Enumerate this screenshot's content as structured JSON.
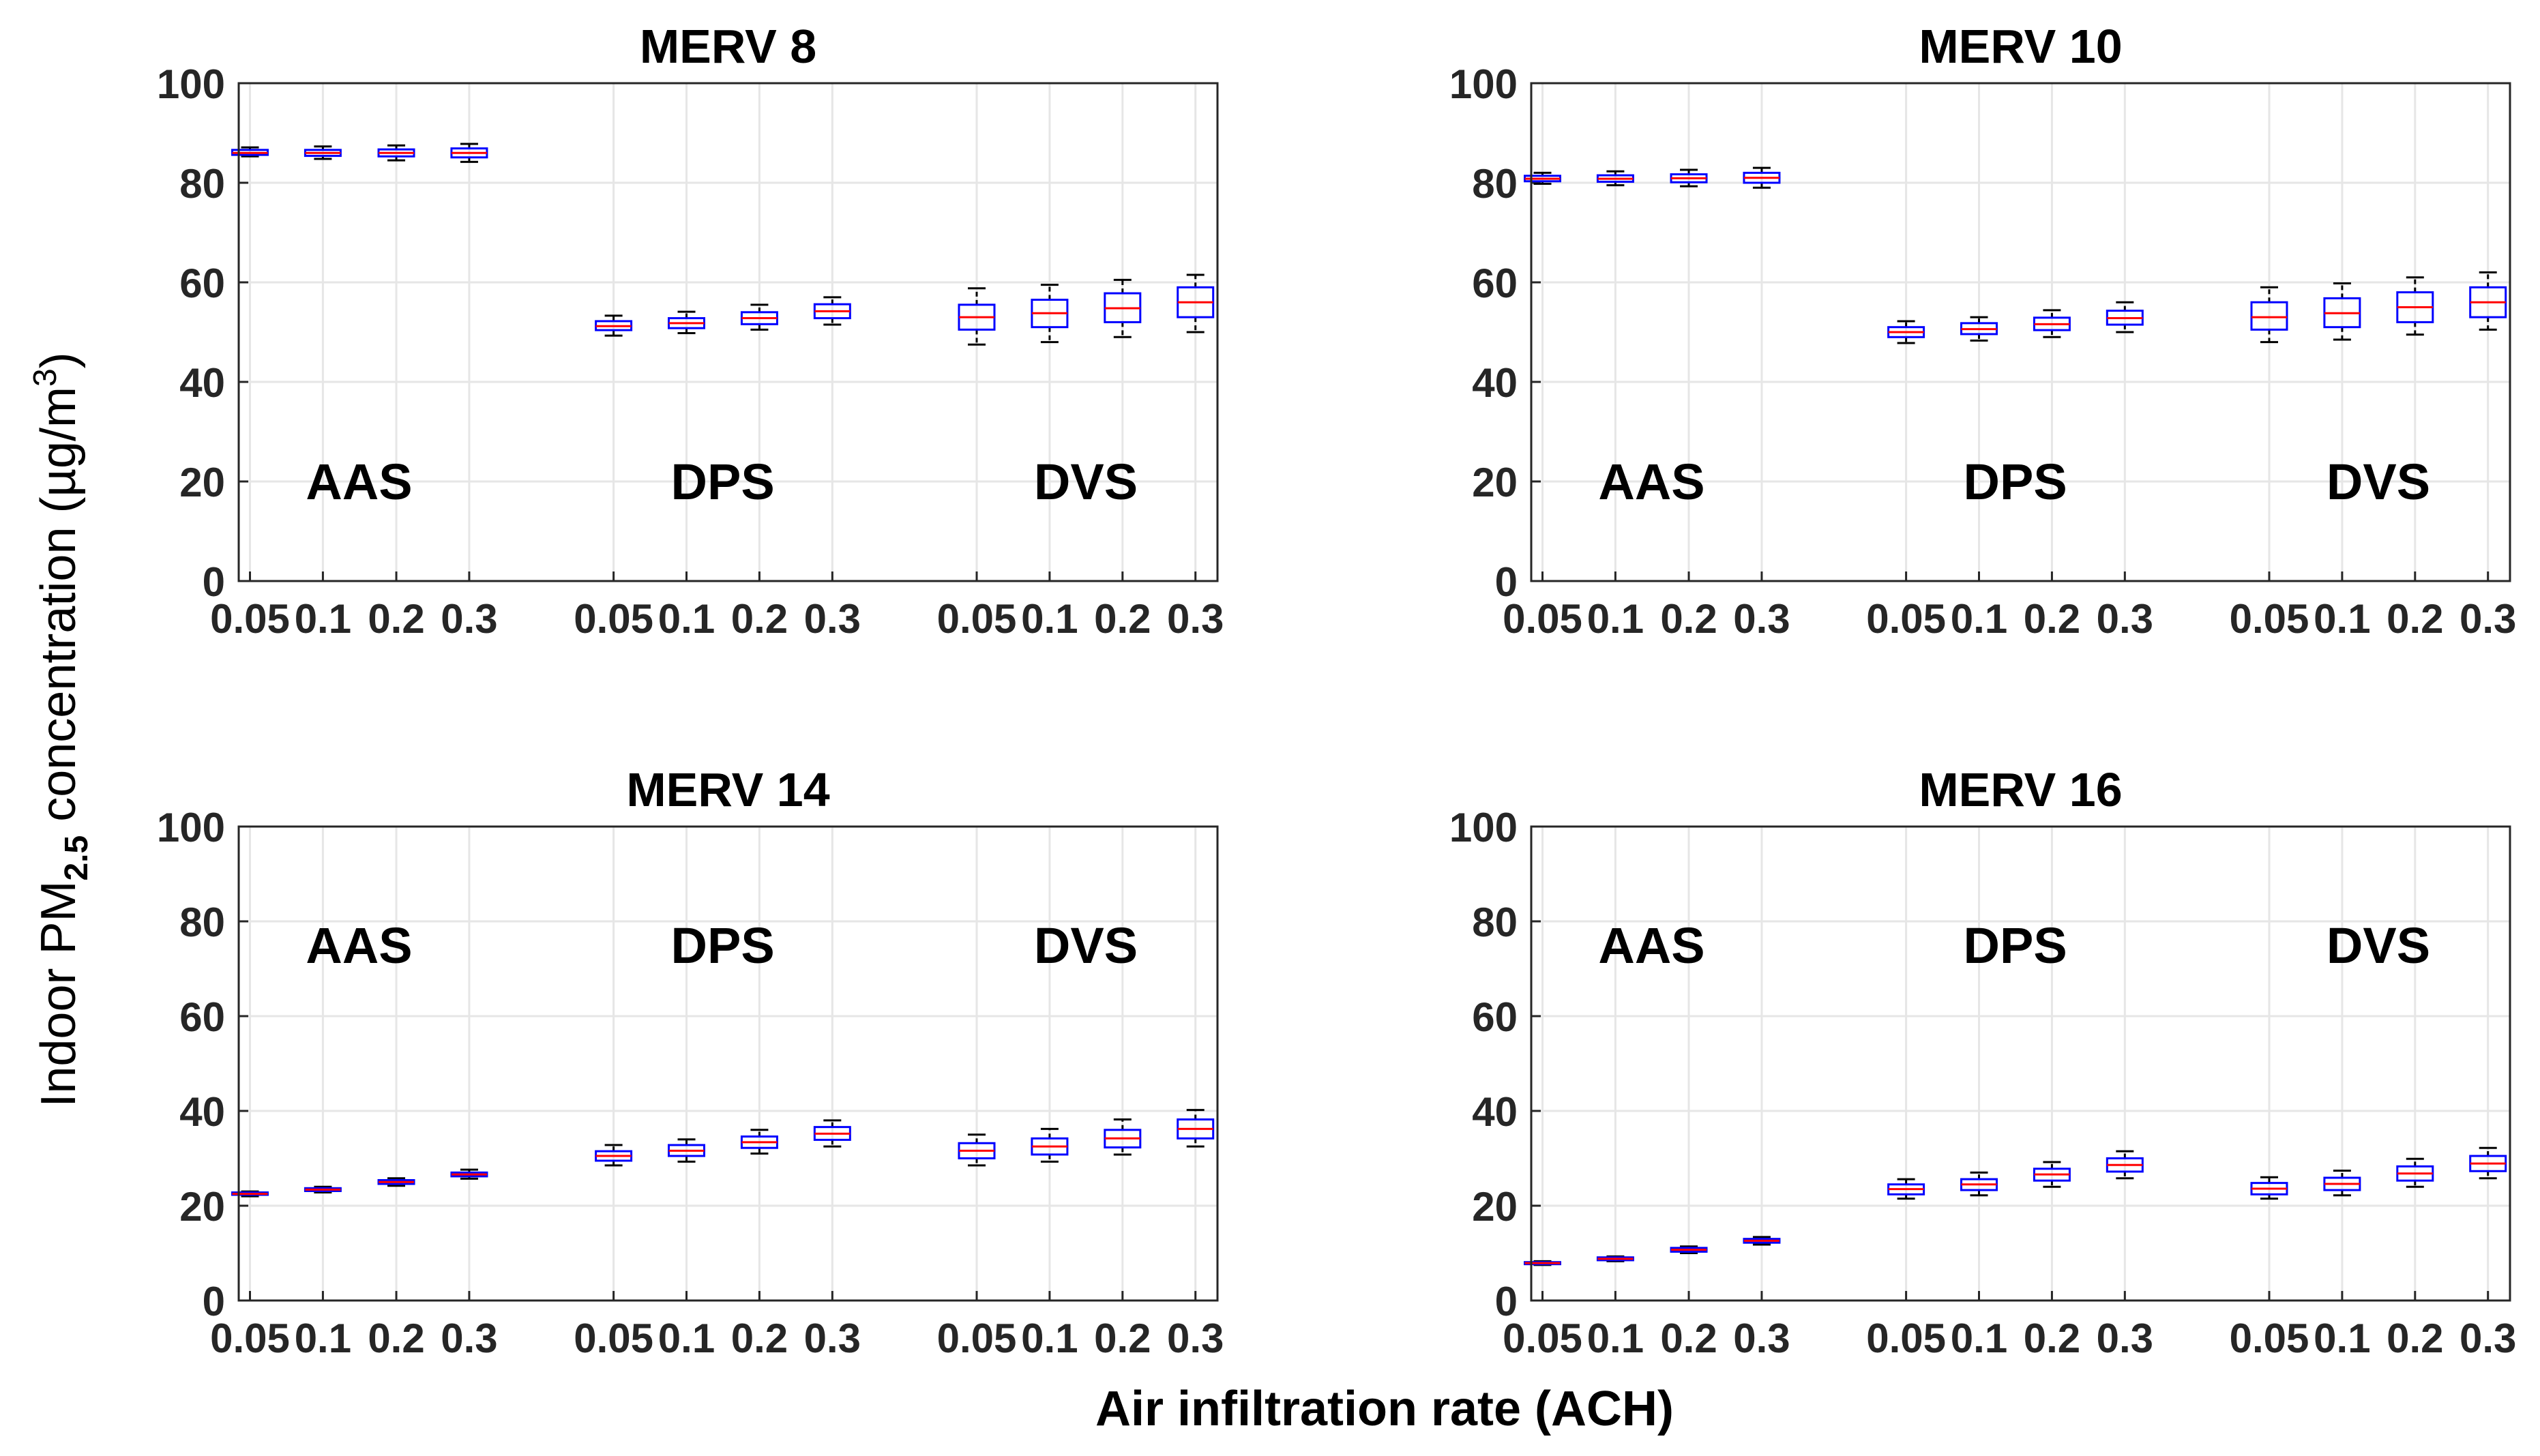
{
  "figure": {
    "ylabel_main": "Indoor PM",
    "ylabel_sub": "2.5",
    "ylabel_rest": " concentration (µg/m",
    "ylabel_sup": "3",
    "ylabel_end": ")",
    "xlabel": "Air infiltration rate (ACH)"
  },
  "chart_data": [
    {
      "type": "box",
      "title": "MERV 8",
      "ylim": [
        0,
        100
      ],
      "yticks": [
        "0",
        "20",
        "40",
        "60",
        "80",
        "100"
      ],
      "grid": true,
      "groups": [
        "AAS",
        "DPS",
        "DVS"
      ],
      "group_label_level": 20,
      "x_tick_labels": [
        "0.05",
        "0.1",
        "0.2",
        "0.3",
        "0.05",
        "0.1",
        "0.2",
        "0.3",
        "0.05",
        "0.1",
        "0.2",
        "0.3"
      ],
      "boxes": [
        {
          "group": "AAS",
          "x": "0.05",
          "whisker_low": 85.3,
          "q1": 85.6,
          "median": 86.0,
          "q3": 86.6,
          "whisker_high": 87.1
        },
        {
          "group": "AAS",
          "x": "0.1",
          "whisker_low": 84.8,
          "q1": 85.4,
          "median": 86.0,
          "q3": 86.6,
          "whisker_high": 87.3
        },
        {
          "group": "AAS",
          "x": "0.2",
          "whisker_low": 84.5,
          "q1": 85.3,
          "median": 86.0,
          "q3": 86.7,
          "whisker_high": 87.5
        },
        {
          "group": "AAS",
          "x": "0.3",
          "whisker_low": 84.2,
          "q1": 85.1,
          "median": 86.0,
          "q3": 86.9,
          "whisker_high": 87.8
        },
        {
          "group": "DPS",
          "x": "0.05",
          "whisker_low": 49.3,
          "q1": 50.4,
          "median": 51.2,
          "q3": 52.2,
          "whisker_high": 53.3
        },
        {
          "group": "DPS",
          "x": "0.1",
          "whisker_low": 49.8,
          "q1": 50.8,
          "median": 51.8,
          "q3": 52.8,
          "whisker_high": 54.1
        },
        {
          "group": "DPS",
          "x": "0.2",
          "whisker_low": 50.5,
          "q1": 51.6,
          "median": 52.8,
          "q3": 54.0,
          "whisker_high": 55.5
        },
        {
          "group": "DPS",
          "x": "0.3",
          "whisker_low": 51.5,
          "q1": 52.8,
          "median": 54.2,
          "q3": 55.6,
          "whisker_high": 57.0
        },
        {
          "group": "DVS",
          "x": "0.05",
          "whisker_low": 47.5,
          "q1": 50.5,
          "median": 53.0,
          "q3": 55.5,
          "whisker_high": 58.8
        },
        {
          "group": "DVS",
          "x": "0.1",
          "whisker_low": 48.0,
          "q1": 51.0,
          "median": 53.8,
          "q3": 56.5,
          "whisker_high": 59.5
        },
        {
          "group": "DVS",
          "x": "0.2",
          "whisker_low": 49.0,
          "q1": 52.0,
          "median": 54.8,
          "q3": 57.8,
          "whisker_high": 60.5
        },
        {
          "group": "DVS",
          "x": "0.3",
          "whisker_low": 50.0,
          "q1": 53.0,
          "median": 56.0,
          "q3": 59.0,
          "whisker_high": 61.5
        }
      ]
    },
    {
      "type": "box",
      "title": "MERV 10",
      "ylim": [
        0,
        100
      ],
      "yticks": [
        "0",
        "20",
        "40",
        "60",
        "80",
        "100"
      ],
      "grid": true,
      "groups": [
        "AAS",
        "DPS",
        "DVS"
      ],
      "group_label_level": 20,
      "x_tick_labels": [
        "0.05",
        "0.1",
        "0.2",
        "0.3",
        "0.05",
        "0.1",
        "0.2",
        "0.3",
        "0.05",
        "0.1",
        "0.2",
        "0.3"
      ],
      "boxes": [
        {
          "group": "AAS",
          "x": "0.05",
          "whisker_low": 79.8,
          "q1": 80.3,
          "median": 80.8,
          "q3": 81.4,
          "whisker_high": 82.0
        },
        {
          "group": "AAS",
          "x": "0.1",
          "whisker_low": 79.5,
          "q1": 80.2,
          "median": 80.8,
          "q3": 81.5,
          "whisker_high": 82.3
        },
        {
          "group": "AAS",
          "x": "0.2",
          "whisker_low": 79.3,
          "q1": 80.1,
          "median": 80.9,
          "q3": 81.7,
          "whisker_high": 82.6
        },
        {
          "group": "AAS",
          "x": "0.3",
          "whisker_low": 79.0,
          "q1": 80.0,
          "median": 81.0,
          "q3": 82.0,
          "whisker_high": 83.0
        },
        {
          "group": "DPS",
          "x": "0.05",
          "whisker_low": 47.8,
          "q1": 49.0,
          "median": 50.0,
          "q3": 51.0,
          "whisker_high": 52.2
        },
        {
          "group": "DPS",
          "x": "0.1",
          "whisker_low": 48.3,
          "q1": 49.6,
          "median": 50.6,
          "q3": 51.8,
          "whisker_high": 53.0
        },
        {
          "group": "DPS",
          "x": "0.2",
          "whisker_low": 49.0,
          "q1": 50.4,
          "median": 51.6,
          "q3": 52.9,
          "whisker_high": 54.4
        },
        {
          "group": "DPS",
          "x": "0.3",
          "whisker_low": 50.0,
          "q1": 51.5,
          "median": 52.8,
          "q3": 54.3,
          "whisker_high": 56.0
        },
        {
          "group": "DVS",
          "x": "0.05",
          "whisker_low": 48.0,
          "q1": 50.5,
          "median": 53.0,
          "q3": 56.0,
          "whisker_high": 59.0
        },
        {
          "group": "DVS",
          "x": "0.1",
          "whisker_low": 48.5,
          "q1": 51.0,
          "median": 53.8,
          "q3": 56.8,
          "whisker_high": 59.8
        },
        {
          "group": "DVS",
          "x": "0.2",
          "whisker_low": 49.5,
          "q1": 52.0,
          "median": 55.0,
          "q3": 58.0,
          "whisker_high": 61.0
        },
        {
          "group": "DVS",
          "x": "0.3",
          "whisker_low": 50.5,
          "q1": 53.0,
          "median": 56.0,
          "q3": 59.0,
          "whisker_high": 62.0
        }
      ]
    },
    {
      "type": "box",
      "title": "MERV 14",
      "ylim": [
        0,
        100
      ],
      "yticks": [
        "0",
        "20",
        "40",
        "60",
        "80",
        "100"
      ],
      "grid": true,
      "groups": [
        "AAS",
        "DPS",
        "DVS"
      ],
      "group_label_level": 75,
      "x_tick_labels": [
        "0.05",
        "0.1",
        "0.2",
        "0.3",
        "0.05",
        "0.1",
        "0.2",
        "0.3",
        "0.05",
        "0.1",
        "0.2",
        "0.3"
      ],
      "boxes": [
        {
          "group": "AAS",
          "x": "0.05",
          "whisker_low": 22.0,
          "q1": 22.3,
          "median": 22.5,
          "q3": 22.8,
          "whisker_high": 23.0
        },
        {
          "group": "AAS",
          "x": "0.1",
          "whisker_low": 22.8,
          "q1": 23.1,
          "median": 23.4,
          "q3": 23.7,
          "whisker_high": 24.0
        },
        {
          "group": "AAS",
          "x": "0.2",
          "whisker_low": 24.2,
          "q1": 24.6,
          "median": 25.0,
          "q3": 25.4,
          "whisker_high": 25.8
        },
        {
          "group": "AAS",
          "x": "0.3",
          "whisker_low": 25.7,
          "q1": 26.2,
          "median": 26.6,
          "q3": 27.0,
          "whisker_high": 27.6
        },
        {
          "group": "DPS",
          "x": "0.05",
          "whisker_low": 28.5,
          "q1": 29.5,
          "median": 30.5,
          "q3": 31.5,
          "whisker_high": 32.8
        },
        {
          "group": "DPS",
          "x": "0.1",
          "whisker_low": 29.3,
          "q1": 30.5,
          "median": 31.6,
          "q3": 32.8,
          "whisker_high": 34.0
        },
        {
          "group": "DPS",
          "x": "0.2",
          "whisker_low": 31.0,
          "q1": 32.2,
          "median": 33.4,
          "q3": 34.6,
          "whisker_high": 36.0
        },
        {
          "group": "DPS",
          "x": "0.3",
          "whisker_low": 32.5,
          "q1": 33.9,
          "median": 35.2,
          "q3": 36.6,
          "whisker_high": 38.0
        },
        {
          "group": "DVS",
          "x": "0.05",
          "whisker_low": 28.5,
          "q1": 30.0,
          "median": 31.6,
          "q3": 33.2,
          "whisker_high": 35.0
        },
        {
          "group": "DVS",
          "x": "0.1",
          "whisker_low": 29.3,
          "q1": 30.8,
          "median": 32.5,
          "q3": 34.2,
          "whisker_high": 36.2
        },
        {
          "group": "DVS",
          "x": "0.2",
          "whisker_low": 30.8,
          "q1": 32.3,
          "median": 34.2,
          "q3": 36.0,
          "whisker_high": 38.2
        },
        {
          "group": "DVS",
          "x": "0.3",
          "whisker_low": 32.5,
          "q1": 34.2,
          "median": 36.2,
          "q3": 38.2,
          "whisker_high": 40.2
        }
      ]
    },
    {
      "type": "box",
      "title": "MERV 16",
      "ylim": [
        0,
        100
      ],
      "yticks": [
        "0",
        "20",
        "40",
        "60",
        "80",
        "100"
      ],
      "grid": true,
      "groups": [
        "AAS",
        "DPS",
        "DVS"
      ],
      "group_label_level": 75,
      "x_tick_labels": [
        "0.05",
        "0.1",
        "0.2",
        "0.3",
        "0.05",
        "0.1",
        "0.2",
        "0.3",
        "0.05",
        "0.1",
        "0.2",
        "0.3"
      ],
      "boxes": [
        {
          "group": "AAS",
          "x": "0.05",
          "whisker_low": 7.5,
          "q1": 7.7,
          "median": 7.9,
          "q3": 8.1,
          "whisker_high": 8.3
        },
        {
          "group": "AAS",
          "x": "0.1",
          "whisker_low": 8.3,
          "q1": 8.5,
          "median": 8.8,
          "q3": 9.1,
          "whisker_high": 9.3
        },
        {
          "group": "AAS",
          "x": "0.2",
          "whisker_low": 10.0,
          "q1": 10.3,
          "median": 10.7,
          "q3": 11.1,
          "whisker_high": 11.4
        },
        {
          "group": "AAS",
          "x": "0.3",
          "whisker_low": 11.8,
          "q1": 12.2,
          "median": 12.6,
          "q3": 13.0,
          "whisker_high": 13.4
        },
        {
          "group": "DPS",
          "x": "0.05",
          "whisker_low": 21.5,
          "q1": 22.4,
          "median": 23.5,
          "q3": 24.5,
          "whisker_high": 25.6
        },
        {
          "group": "DPS",
          "x": "0.1",
          "whisker_low": 22.2,
          "q1": 23.3,
          "median": 24.5,
          "q3": 25.6,
          "whisker_high": 27.0
        },
        {
          "group": "DPS",
          "x": "0.2",
          "whisker_low": 24.0,
          "q1": 25.3,
          "median": 26.6,
          "q3": 27.8,
          "whisker_high": 29.2
        },
        {
          "group": "DPS",
          "x": "0.3",
          "whisker_low": 25.8,
          "q1": 27.2,
          "median": 28.6,
          "q3": 30.0,
          "whisker_high": 31.5
        },
        {
          "group": "DVS",
          "x": "0.05",
          "whisker_low": 21.5,
          "q1": 22.4,
          "median": 23.6,
          "q3": 24.8,
          "whisker_high": 26.0
        },
        {
          "group": "DVS",
          "x": "0.1",
          "whisker_low": 22.2,
          "q1": 23.3,
          "median": 24.6,
          "q3": 25.9,
          "whisker_high": 27.4
        },
        {
          "group": "DVS",
          "x": "0.2",
          "whisker_low": 24.0,
          "q1": 25.3,
          "median": 26.8,
          "q3": 28.3,
          "whisker_high": 29.9
        },
        {
          "group": "DVS",
          "x": "0.3",
          "whisker_low": 25.8,
          "q1": 27.3,
          "median": 28.9,
          "q3": 30.5,
          "whisker_high": 32.2
        }
      ]
    }
  ]
}
